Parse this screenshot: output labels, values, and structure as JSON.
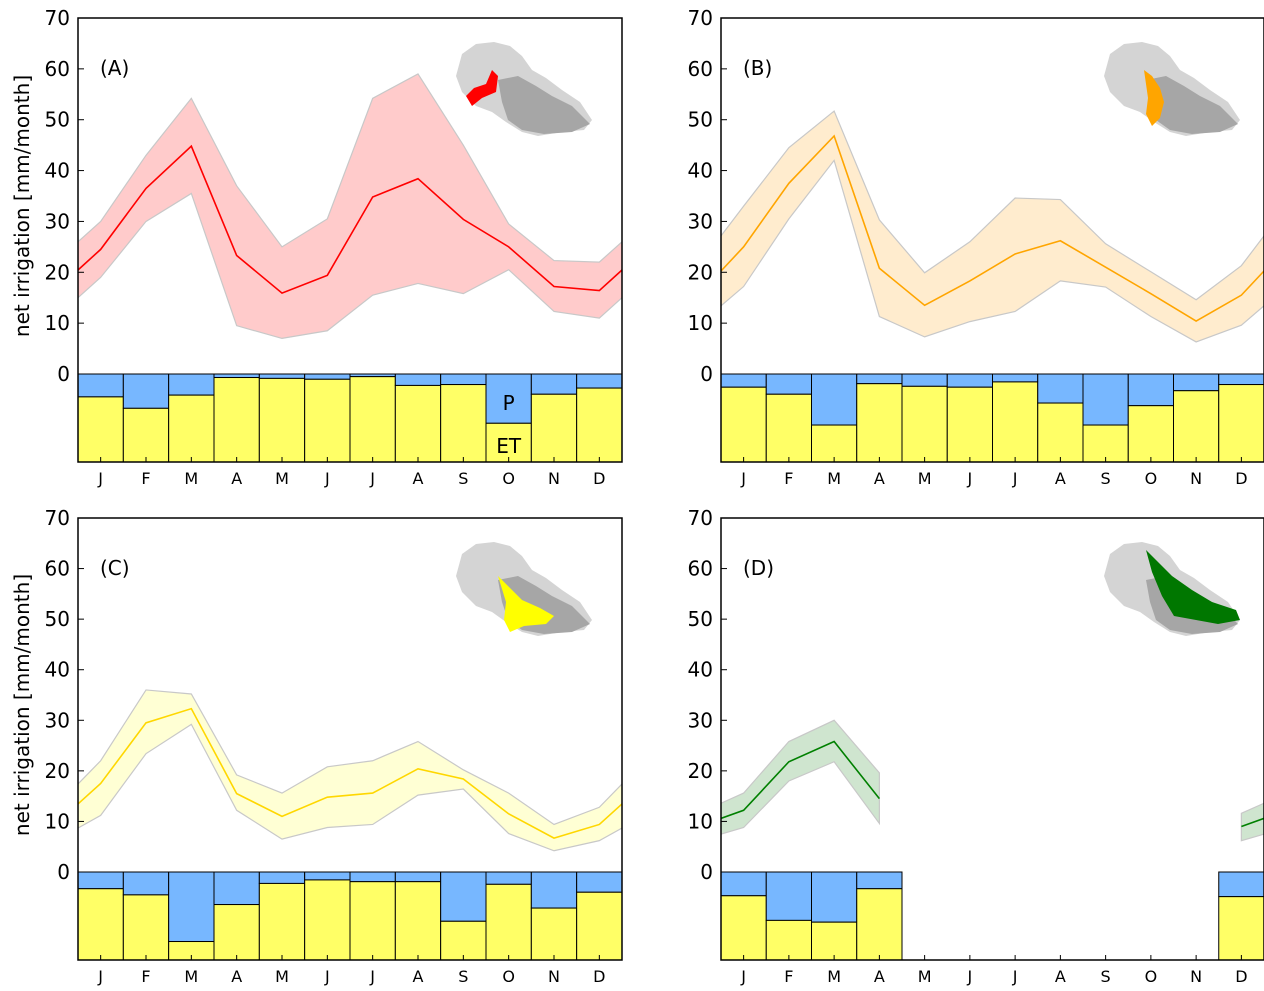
{
  "figure": {
    "ylabel": "net irrigation  [mm/month]",
    "months": [
      "J",
      "F",
      "M",
      "A",
      "M",
      "J",
      "J",
      "A",
      "S",
      "O",
      "N",
      "D"
    ],
    "yticks": [
      0,
      10,
      20,
      30,
      40,
      50,
      60,
      70
    ],
    "bar_labels": {
      "p": "P",
      "et": "ET"
    },
    "colors": {
      "precip": "#77b7ff",
      "et": "#ffff66"
    }
  },
  "chart_data": [
    {
      "type": "line",
      "label": "(A)",
      "color": "#ff0000",
      "band_color": "#ffa0a0",
      "map_color": "#ff0000",
      "ylim": [
        0,
        70
      ],
      "series": [
        {
          "values": [
            24.5,
            36.5,
            44.8,
            23.3,
            15.9,
            19.4,
            34.8,
            38.4,
            30.4,
            25.0,
            17.2,
            16.4
          ],
          "upper": [
            30.0,
            43.0,
            54.2,
            37.0,
            25.0,
            30.5,
            54.2,
            59.0,
            45.0,
            29.5,
            22.3,
            22.0
          ],
          "lower": [
            19.0,
            30.0,
            35.5,
            9.5,
            7.0,
            8.5,
            15.5,
            17.8,
            15.8,
            20.5,
            12.3,
            11.0
          ]
        }
      ],
      "bars": {
        "et_top": [
          0.26,
          0.39,
          0.24,
          0.04,
          0.05,
          0.06,
          0.03,
          0.13,
          0.12,
          0.56,
          0.23,
          0.16
        ]
      }
    },
    {
      "type": "line",
      "label": "(B)",
      "color": "#ffa500",
      "band_color": "#ffdca6",
      "map_color": "#ffa500",
      "ylim": [
        0,
        70
      ],
      "series": [
        {
          "values": [
            25.0,
            37.5,
            46.8,
            20.8,
            13.5,
            18.3,
            23.6,
            26.2,
            21.0,
            15.8,
            10.4,
            15.5
          ],
          "upper": [
            33.0,
            44.5,
            51.7,
            30.3,
            19.9,
            26.0,
            34.6,
            34.3,
            25.6,
            20.1,
            14.6,
            21.3
          ],
          "lower": [
            17.2,
            30.5,
            42.0,
            11.3,
            7.3,
            10.3,
            12.3,
            18.3,
            17.1,
            11.3,
            6.3,
            9.6
          ]
        }
      ],
      "bars": {
        "et_top": [
          0.15,
          0.23,
          0.58,
          0.11,
          0.14,
          0.15,
          0.09,
          0.33,
          0.58,
          0.36,
          0.19,
          0.12
        ]
      }
    },
    {
      "type": "line",
      "label": "(C)",
      "color": "#ffd700",
      "band_color": "#ffffb0",
      "map_color": "#ffff00",
      "ylim": [
        0,
        70
      ],
      "series": [
        {
          "values": [
            17.5,
            29.5,
            32.3,
            15.5,
            11.0,
            14.8,
            15.6,
            20.4,
            18.4,
            11.5,
            6.7,
            9.4
          ],
          "upper": [
            22.0,
            36.0,
            35.2,
            19.2,
            15.6,
            20.8,
            22.0,
            25.8,
            20.2,
            15.6,
            9.4,
            12.8
          ],
          "lower": [
            11.2,
            23.4,
            29.2,
            12.2,
            6.5,
            8.8,
            9.4,
            15.2,
            16.4,
            7.6,
            4.2,
            6.2
          ]
        }
      ],
      "bars": {
        "et_top": [
          0.19,
          0.26,
          0.79,
          0.37,
          0.13,
          0.09,
          0.11,
          0.11,
          0.56,
          0.14,
          0.41,
          0.23
        ]
      }
    },
    {
      "type": "line",
      "label": "(D)",
      "color": "#008000",
      "band_color": "#a8d0a8",
      "map_color": "#007700",
      "ylim": [
        0,
        70
      ],
      "series": [
        {
          "values": [
            12.2,
            21.8,
            25.8,
            14.5,
            null,
            null,
            null,
            null,
            null,
            null,
            null,
            9.0
          ],
          "upper": [
            15.6,
            25.8,
            30.0,
            19.6,
            null,
            null,
            null,
            null,
            null,
            null,
            null,
            11.6
          ],
          "lower": [
            8.8,
            18.0,
            21.8,
            9.6,
            null,
            null,
            null,
            null,
            null,
            null,
            null,
            6.2
          ]
        }
      ],
      "bars": {
        "et_top": [
          0.27,
          0.55,
          0.57,
          0.19,
          null,
          null,
          null,
          null,
          null,
          null,
          null,
          0.28
        ]
      }
    }
  ]
}
